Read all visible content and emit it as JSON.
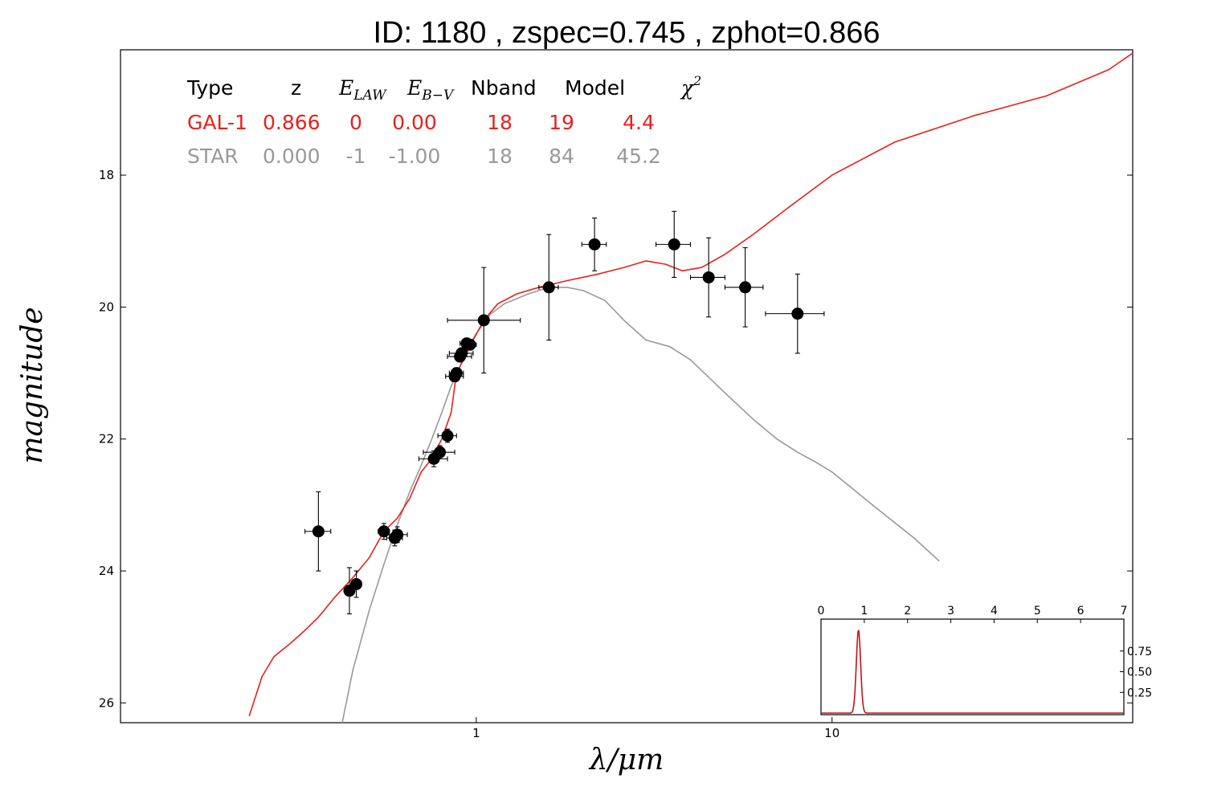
{
  "chart_data": {
    "type": "scatter",
    "title": "ID:  1180  , zspec=0.745 , zphot=0.866",
    "xlabel": "λ/μm",
    "ylabel": "magnitude",
    "x_scale": "log",
    "xlim": [
      0.1,
      70
    ],
    "ylim": [
      26.3,
      16.1
    ],
    "y_inverted": true,
    "x_ticks": [
      {
        "value": 1,
        "label": "1"
      },
      {
        "value": 10,
        "label": "10"
      }
    ],
    "y_ticks": [
      {
        "value": 18,
        "label": "18"
      },
      {
        "value": 20,
        "label": "20"
      },
      {
        "value": 22,
        "label": "22"
      },
      {
        "value": 24,
        "label": "24"
      },
      {
        "value": 26,
        "label": "26"
      }
    ],
    "legend_table": {
      "headers": [
        "Type",
        "z",
        "E_LAW",
        "E_B−V",
        "Nband",
        "Model",
        "χ²"
      ],
      "rows": [
        {
          "cells": [
            "GAL-1",
            "0.866",
            "0",
            "0.00",
            "18",
            "19",
            "4.4"
          ],
          "color": "#e8211c"
        },
        {
          "cells": [
            "STAR",
            "0.000",
            "-1",
            "-1.00",
            "18",
            "84",
            "45.2"
          ],
          "color": "#999999"
        }
      ]
    },
    "photometry": [
      {
        "x": 0.36,
        "y": 23.4,
        "xerr": [
          0.33,
          0.39
        ],
        "yerr": 0.6
      },
      {
        "x": 0.44,
        "y": 24.3,
        "xerr": [
          0.43,
          0.45
        ],
        "yerr": 0.35
      },
      {
        "x": 0.46,
        "y": 24.2,
        "xerr": [
          0.45,
          0.47
        ],
        "yerr": 0.2
      },
      {
        "x": 0.55,
        "y": 23.4,
        "xerr": [
          0.53,
          0.57
        ],
        "yerr": 0.12
      },
      {
        "x": 0.59,
        "y": 23.5,
        "xerr": [
          0.56,
          0.62
        ],
        "yerr": 0.12
      },
      {
        "x": 0.6,
        "y": 23.45,
        "xerr": [
          0.56,
          0.64
        ],
        "yerr": 0.12
      },
      {
        "x": 0.76,
        "y": 22.3,
        "xerr": [
          0.69,
          0.83
        ],
        "yerr": 0.12
      },
      {
        "x": 0.79,
        "y": 22.2,
        "xerr": [
          0.71,
          0.87
        ],
        "yerr": 0.1
      },
      {
        "x": 0.83,
        "y": 21.95,
        "xerr": [
          0.78,
          0.88
        ],
        "yerr": 0.1
      },
      {
        "x": 0.87,
        "y": 21.05,
        "xerr": [
          0.82,
          0.92
        ],
        "yerr": 0.08
      },
      {
        "x": 0.88,
        "y": 21.0,
        "xerr": [
          0.84,
          0.92
        ],
        "yerr": 0.08
      },
      {
        "x": 0.9,
        "y": 20.75,
        "xerr": [
          0.83,
          0.97
        ],
        "yerr": 0.08
      },
      {
        "x": 0.91,
        "y": 20.7,
        "xerr": [
          0.84,
          0.98
        ],
        "yerr": 0.08
      },
      {
        "x": 0.94,
        "y": 20.55,
        "xerr": [
          0.9,
          0.98
        ],
        "yerr": 0.08
      },
      {
        "x": 0.96,
        "y": 20.57,
        "xerr": [
          0.92,
          1.0
        ],
        "yerr": 0.08
      },
      {
        "x": 1.05,
        "y": 20.2,
        "xerr": [
          0.83,
          1.33
        ],
        "yerr": 0.8
      },
      {
        "x": 1.6,
        "y": 19.7,
        "xerr": [
          1.5,
          1.7
        ],
        "yerr": 0.8
      },
      {
        "x": 2.15,
        "y": 19.05,
        "xerr": [
          1.98,
          2.32
        ],
        "yerr": 0.4
      },
      {
        "x": 3.6,
        "y": 19.05,
        "xerr": [
          3.2,
          4.0
        ],
        "yerr": 0.5
      },
      {
        "x": 4.5,
        "y": 19.55,
        "xerr": [
          4.0,
          5.0
        ],
        "yerr": 0.6
      },
      {
        "x": 5.7,
        "y": 19.7,
        "xerr": [
          5.0,
          6.4
        ],
        "yerr": 0.6
      },
      {
        "x": 8.0,
        "y": 20.1,
        "xerr": [
          6.5,
          9.5
        ],
        "yerr": 0.6
      }
    ],
    "series": [
      {
        "name": "GAL-1",
        "color": "#e8211c",
        "points": [
          [
            0.23,
            26.2
          ],
          [
            0.25,
            25.6
          ],
          [
            0.27,
            25.3
          ],
          [
            0.3,
            25.1
          ],
          [
            0.33,
            24.9
          ],
          [
            0.36,
            24.7
          ],
          [
            0.4,
            24.4
          ],
          [
            0.45,
            24.1
          ],
          [
            0.5,
            23.8
          ],
          [
            0.55,
            23.4
          ],
          [
            0.6,
            23.2
          ],
          [
            0.65,
            22.9
          ],
          [
            0.7,
            22.5
          ],
          [
            0.75,
            22.3
          ],
          [
            0.8,
            22.0
          ],
          [
            0.85,
            21.6
          ],
          [
            0.88,
            21.0
          ],
          [
            0.92,
            20.8
          ],
          [
            0.98,
            20.5
          ],
          [
            1.05,
            20.2
          ],
          [
            1.15,
            19.95
          ],
          [
            1.3,
            19.8
          ],
          [
            1.5,
            19.7
          ],
          [
            1.8,
            19.6
          ],
          [
            2.2,
            19.5
          ],
          [
            2.6,
            19.4
          ],
          [
            3.0,
            19.3
          ],
          [
            3.4,
            19.35
          ],
          [
            3.8,
            19.45
          ],
          [
            4.3,
            19.4
          ],
          [
            5.0,
            19.2
          ],
          [
            6.0,
            18.9
          ],
          [
            7.5,
            18.5
          ],
          [
            10.0,
            18.0
          ],
          [
            15.0,
            17.5
          ],
          [
            25.0,
            17.1
          ],
          [
            40.0,
            16.8
          ],
          [
            60.0,
            16.4
          ],
          [
            70.0,
            16.15
          ]
        ]
      },
      {
        "name": "STAR",
        "color": "#999999",
        "points": [
          [
            0.42,
            26.3
          ],
          [
            0.45,
            25.5
          ],
          [
            0.5,
            24.6
          ],
          [
            0.55,
            23.9
          ],
          [
            0.6,
            23.3
          ],
          [
            0.65,
            22.8
          ],
          [
            0.7,
            22.4
          ],
          [
            0.75,
            22.0
          ],
          [
            0.8,
            21.6
          ],
          [
            0.85,
            21.2
          ],
          [
            0.9,
            20.9
          ],
          [
            0.95,
            20.6
          ],
          [
            1.0,
            20.4
          ],
          [
            1.1,
            20.1
          ],
          [
            1.2,
            19.95
          ],
          [
            1.4,
            19.8
          ],
          [
            1.6,
            19.7
          ],
          [
            1.8,
            19.7
          ],
          [
            2.0,
            19.75
          ],
          [
            2.3,
            19.9
          ],
          [
            2.6,
            20.2
          ],
          [
            3.0,
            20.5
          ],
          [
            3.5,
            20.6
          ],
          [
            4.0,
            20.8
          ],
          [
            5.0,
            21.3
          ],
          [
            6.0,
            21.7
          ],
          [
            7.0,
            22.0
          ],
          [
            8.0,
            22.2
          ],
          [
            9.0,
            22.35
          ],
          [
            10.0,
            22.5
          ],
          [
            13.0,
            23.0
          ],
          [
            17.0,
            23.5
          ],
          [
            20.0,
            23.85
          ]
        ]
      }
    ],
    "inset": {
      "type": "line",
      "xlim": [
        0,
        7
      ],
      "ylim": [
        0,
        1
      ],
      "x_ticks": [
        "0",
        "1",
        "2",
        "3",
        "4",
        "5",
        "6",
        "7"
      ],
      "y_ticks": [
        "0.25",
        "0.50",
        "0.75"
      ],
      "y_tick_values": [
        0.25,
        0.5,
        0.75
      ],
      "pdf_peak": 0.866,
      "pdf_sigma": 0.05,
      "pdf_peak_height": 1.0,
      "color": "#c01417"
    }
  }
}
